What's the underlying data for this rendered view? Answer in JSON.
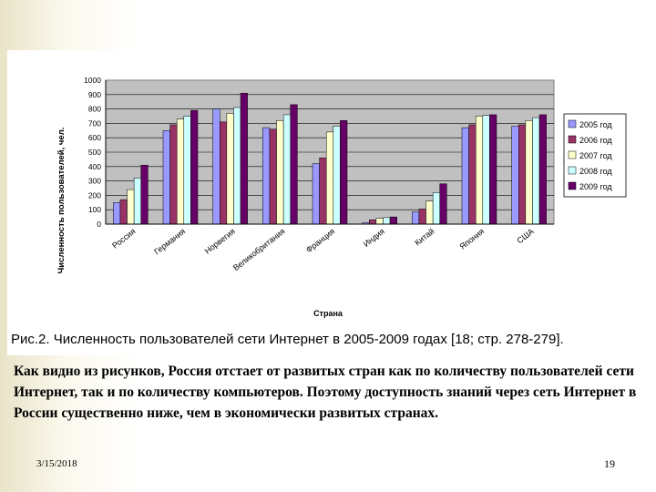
{
  "chart_data": {
    "type": "bar",
    "xlabel": "Страна",
    "ylabel": "Численность пользователей, чел.",
    "ylim": [
      0,
      1000
    ],
    "yticks": [
      "0",
      "100",
      "200",
      "300",
      "400",
      "500",
      "600",
      "700",
      "800",
      "900",
      "1000"
    ],
    "grid": true,
    "legend_position": "right",
    "categories": [
      "Россия",
      "Германия",
      "Норвегия",
      "Великобритания",
      "Франция",
      "Индия",
      "Китай",
      "Япония",
      "США"
    ],
    "series": [
      {
        "name": "2005 год",
        "color": "#9999ff",
        "values": [
          150,
          650,
          800,
          670,
          420,
          10,
          85,
          670,
          680
        ]
      },
      {
        "name": "2006 год",
        "color": "#993366",
        "values": [
          170,
          690,
          710,
          660,
          460,
          30,
          105,
          690,
          690
        ]
      },
      {
        "name": "2007 год",
        "color": "#ffffcc",
        "values": [
          240,
          730,
          770,
          720,
          640,
          40,
          160,
          750,
          720
        ]
      },
      {
        "name": "2008 год",
        "color": "#ccffff",
        "values": [
          320,
          750,
          810,
          760,
          680,
          45,
          220,
          755,
          740
        ]
      },
      {
        "name": "2009 год",
        "color": "#660066",
        "values": [
          410,
          790,
          910,
          830,
          720,
          50,
          280,
          760,
          760
        ]
      }
    ]
  },
  "caption": "Рис.2. Численность пользователей сети Интернет в 2005-2009 годах [18; стр. 278-279].",
  "body_text": "Как видно из рисунков, Россия отстает от развитых стран как по количеству пользователей сети Интернет, так и по количеству компьютеров. Поэтому доступность знаний через сеть Интернет в России существенно ниже, чем в экономически развитых странах.",
  "footer": {
    "date": "3/15/2018",
    "page": "19"
  }
}
